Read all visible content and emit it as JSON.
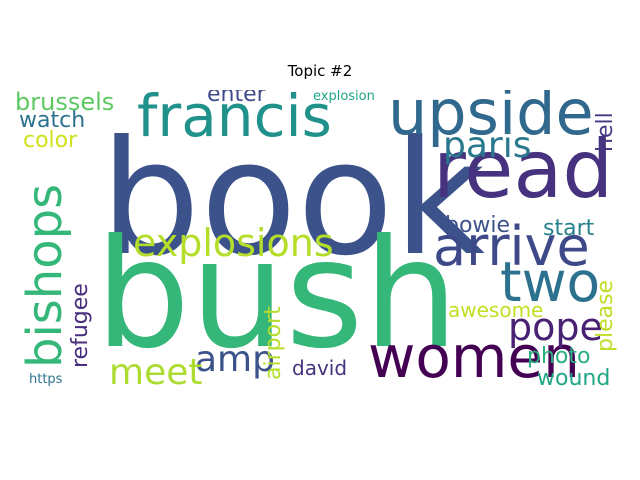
{
  "title": "Topic #2",
  "words": [
    {
      "text": "book",
      "color": "#3b528b"
    },
    {
      "text": "bush",
      "color": "#35b779"
    },
    {
      "text": "read",
      "color": "#46327e"
    },
    {
      "text": "upside",
      "color": "#31688e"
    },
    {
      "text": "francis",
      "color": "#21918c"
    },
    {
      "text": "bishops",
      "color": "#35b779"
    },
    {
      "text": "arrive",
      "color": "#3e4989"
    },
    {
      "text": "women",
      "color": "#440154"
    },
    {
      "text": "explosions",
      "color": "#b5de2b"
    },
    {
      "text": "two",
      "color": "#2c728e"
    },
    {
      "text": "pope",
      "color": "#482173"
    },
    {
      "text": "paris",
      "color": "#2a788e"
    },
    {
      "text": "amp",
      "color": "#3b528b"
    },
    {
      "text": "meet",
      "color": "#addc30"
    },
    {
      "text": "brussels",
      "color": "#5ec962"
    },
    {
      "text": "enter",
      "color": "#3e4a89"
    },
    {
      "text": "watch",
      "color": "#2c728e"
    },
    {
      "text": "color",
      "color": "#d0e11c"
    },
    {
      "text": "hell",
      "color": "#443983"
    },
    {
      "text": "bowie",
      "color": "#3b528b"
    },
    {
      "text": "start",
      "color": "#26828e"
    },
    {
      "text": "refugee",
      "color": "#472d7b"
    },
    {
      "text": "airport",
      "color": "#b5de2b"
    },
    {
      "text": "awesome",
      "color": "#c2df23"
    },
    {
      "text": "please",
      "color": "#bddf26"
    },
    {
      "text": "photo",
      "color": "#29af7f"
    },
    {
      "text": "david",
      "color": "#46337e"
    },
    {
      "text": "wound",
      "color": "#22a785"
    },
    {
      "text": "explosion",
      "color": "#21a685"
    },
    {
      "text": "https",
      "color": "#2c728e"
    }
  ]
}
